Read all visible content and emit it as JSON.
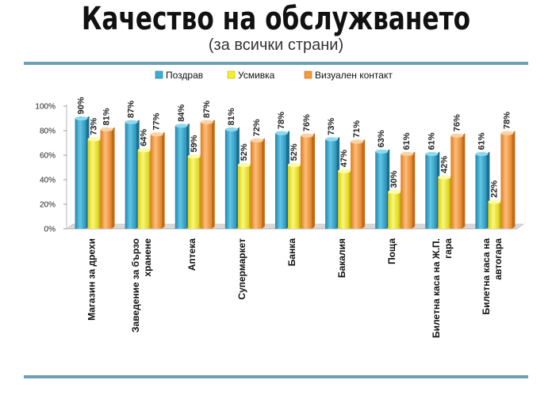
{
  "header": {
    "title": "Качество на обслужването",
    "subtitle": "(за всички страни)"
  },
  "chart_data": {
    "type": "bar",
    "title": "Качество на обслужването",
    "subtitle": "(за всички страни)",
    "categories": [
      [
        "Магазин за дрехи"
      ],
      [
        "Заведение за бързо",
        "хранене"
      ],
      [
        "Аптека"
      ],
      [
        "Супермаркет"
      ],
      [
        "Банка"
      ],
      [
        "Бакалия"
      ],
      [
        "Поща"
      ],
      [
        "Билетна каса на Ж.П.",
        "гара"
      ],
      [
        "Билетна каса на",
        "автогара"
      ]
    ],
    "series": [
      {
        "name": "Поздрав",
        "values": [
          90,
          87,
          84,
          81,
          78,
          73,
          63,
          61,
          61
        ],
        "color": "#3aaed2"
      },
      {
        "name": "Усмивка",
        "values": [
          73,
          64,
          59,
          52,
          52,
          47,
          30,
          42,
          22
        ],
        "color": "#f4ee2a"
      },
      {
        "name": "Визуален контакт",
        "values": [
          81,
          77,
          87,
          72,
          76,
          71,
          61,
          76,
          78
        ],
        "color": "#f59a3e"
      }
    ],
    "yticks": [
      "0%",
      "20%",
      "40%",
      "60%",
      "80%",
      "100%"
    ],
    "ylim": [
      0,
      100
    ],
    "value_suffix": "%",
    "legend_position": "top",
    "grid": false
  }
}
